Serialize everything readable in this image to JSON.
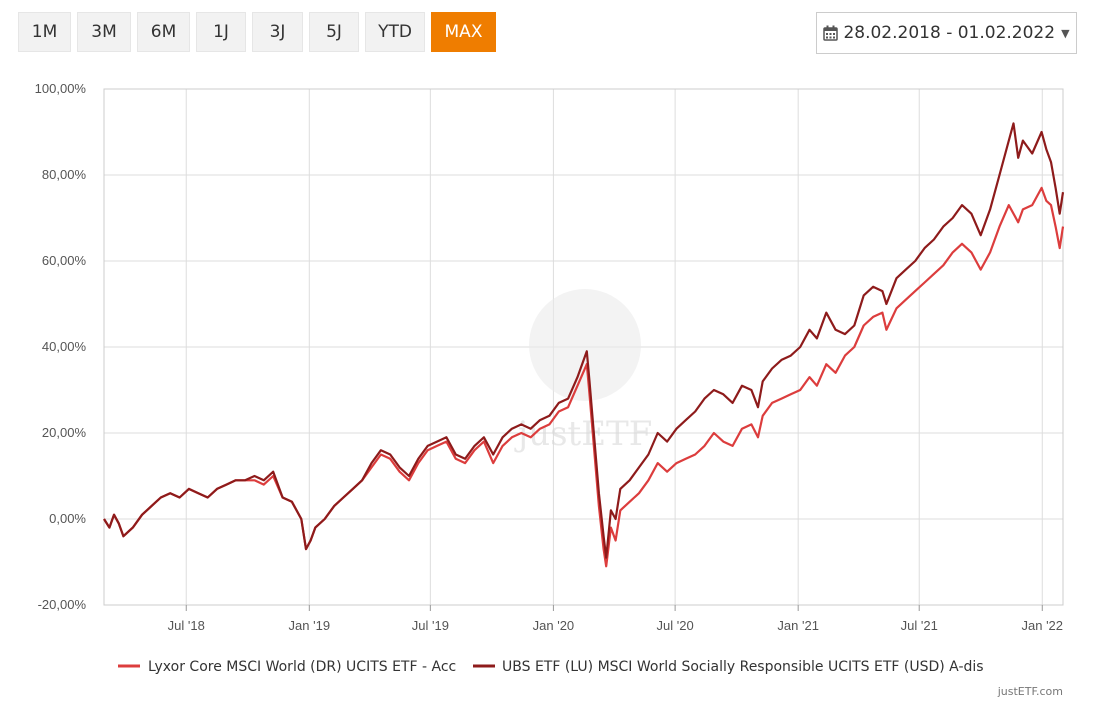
{
  "range_buttons": [
    {
      "label": "1M",
      "active": false
    },
    {
      "label": "3M",
      "active": false
    },
    {
      "label": "6M",
      "active": false
    },
    {
      "label": "1J",
      "active": false
    },
    {
      "label": "3J",
      "active": false
    },
    {
      "label": "5J",
      "active": false
    },
    {
      "label": "YTD",
      "active": false
    },
    {
      "label": "MAX",
      "active": true
    }
  ],
  "date_range": "28.02.2018 - 01.02.2022",
  "credit": "justETF.com",
  "watermark": "justETF",
  "colors": {
    "accent": "#ef7d00",
    "series1": "#dc3d3d",
    "series2": "#8e1b1b",
    "grid": "#dddddd"
  },
  "chart_data": {
    "type": "line",
    "title": "",
    "xlabel": "",
    "ylabel": "",
    "ylim": [
      -20,
      100
    ],
    "x_range": [
      "2018-02-28",
      "2022-02-01"
    ],
    "y_ticks": [
      {
        "value": 100,
        "label": "100,00%"
      },
      {
        "value": 80,
        "label": "80,00%"
      },
      {
        "value": 60,
        "label": "60,00%"
      },
      {
        "value": 40,
        "label": "40,00%"
      },
      {
        "value": 20,
        "label": "20,00%"
      },
      {
        "value": 0,
        "label": "0,00%"
      },
      {
        "value": -20,
        "label": "-20,00%"
      }
    ],
    "x_ticks": [
      {
        "date": "2018-07-01",
        "label": "Jul '18"
      },
      {
        "date": "2019-01-01",
        "label": "Jan '19"
      },
      {
        "date": "2019-07-01",
        "label": "Jul '19"
      },
      {
        "date": "2020-01-01",
        "label": "Jan '20"
      },
      {
        "date": "2020-07-01",
        "label": "Jul '20"
      },
      {
        "date": "2021-01-01",
        "label": "Jan '21"
      },
      {
        "date": "2021-07-01",
        "label": "Jul '21"
      },
      {
        "date": "2022-01-01",
        "label": "Jan '22"
      }
    ],
    "legend_position": "bottom",
    "series": [
      {
        "name": "Lyxor Core MSCI World (DR) UCITS ETF - Acc",
        "color": "#dc3d3d",
        "points": [
          [
            "2018-02-28",
            0
          ],
          [
            "2018-03-08",
            -2
          ],
          [
            "2018-03-15",
            1
          ],
          [
            "2018-03-22",
            -1
          ],
          [
            "2018-03-29",
            -4
          ],
          [
            "2018-04-12",
            -2
          ],
          [
            "2018-04-26",
            1
          ],
          [
            "2018-05-10",
            3
          ],
          [
            "2018-05-24",
            5
          ],
          [
            "2018-06-07",
            6
          ],
          [
            "2018-06-21",
            5
          ],
          [
            "2018-07-05",
            7
          ],
          [
            "2018-07-19",
            6
          ],
          [
            "2018-08-02",
            5
          ],
          [
            "2018-08-16",
            7
          ],
          [
            "2018-08-30",
            8
          ],
          [
            "2018-09-13",
            9
          ],
          [
            "2018-09-27",
            9
          ],
          [
            "2018-10-11",
            9
          ],
          [
            "2018-10-25",
            8
          ],
          [
            "2018-11-08",
            10
          ],
          [
            "2018-11-22",
            5
          ],
          [
            "2018-12-06",
            4
          ],
          [
            "2018-12-20",
            0
          ],
          [
            "2018-12-27",
            -7
          ],
          [
            "2019-01-03",
            -5
          ],
          [
            "2019-01-10",
            -2
          ],
          [
            "2019-01-24",
            0
          ],
          [
            "2019-02-07",
            3
          ],
          [
            "2019-02-21",
            5
          ],
          [
            "2019-03-07",
            7
          ],
          [
            "2019-03-21",
            9
          ],
          [
            "2019-04-04",
            12
          ],
          [
            "2019-04-18",
            15
          ],
          [
            "2019-05-02",
            14
          ],
          [
            "2019-05-16",
            11
          ],
          [
            "2019-05-30",
            9
          ],
          [
            "2019-06-13",
            13
          ],
          [
            "2019-06-27",
            16
          ],
          [
            "2019-07-11",
            17
          ],
          [
            "2019-07-25",
            18
          ],
          [
            "2019-08-08",
            14
          ],
          [
            "2019-08-22",
            13
          ],
          [
            "2019-09-05",
            16
          ],
          [
            "2019-09-19",
            18
          ],
          [
            "2019-10-03",
            13
          ],
          [
            "2019-10-17",
            17
          ],
          [
            "2019-10-31",
            19
          ],
          [
            "2019-11-14",
            20
          ],
          [
            "2019-11-28",
            19
          ],
          [
            "2019-12-12",
            21
          ],
          [
            "2019-12-26",
            22
          ],
          [
            "2020-01-09",
            25
          ],
          [
            "2020-01-23",
            26
          ],
          [
            "2020-02-06",
            31
          ],
          [
            "2020-02-20",
            36
          ],
          [
            "2020-02-24",
            29
          ],
          [
            "2020-03-02",
            16
          ],
          [
            "2020-03-09",
            3
          ],
          [
            "2020-03-16",
            -7
          ],
          [
            "2020-03-20",
            -11
          ],
          [
            "2020-03-27",
            -2
          ],
          [
            "2020-04-03",
            -5
          ],
          [
            "2020-04-10",
            2
          ],
          [
            "2020-04-24",
            4
          ],
          [
            "2020-05-08",
            6
          ],
          [
            "2020-05-22",
            9
          ],
          [
            "2020-06-05",
            13
          ],
          [
            "2020-06-19",
            11
          ],
          [
            "2020-07-03",
            13
          ],
          [
            "2020-07-17",
            14
          ],
          [
            "2020-07-31",
            15
          ],
          [
            "2020-08-14",
            17
          ],
          [
            "2020-08-28",
            20
          ],
          [
            "2020-09-11",
            18
          ],
          [
            "2020-09-25",
            17
          ],
          [
            "2020-10-09",
            21
          ],
          [
            "2020-10-23",
            22
          ],
          [
            "2020-11-02",
            19
          ],
          [
            "2020-11-09",
            24
          ],
          [
            "2020-11-23",
            27
          ],
          [
            "2020-12-07",
            28
          ],
          [
            "2020-12-21",
            29
          ],
          [
            "2021-01-04",
            30
          ],
          [
            "2021-01-18",
            33
          ],
          [
            "2021-01-29",
            31
          ],
          [
            "2021-02-12",
            36
          ],
          [
            "2021-02-26",
            34
          ],
          [
            "2021-03-12",
            38
          ],
          [
            "2021-03-26",
            40
          ],
          [
            "2021-04-09",
            45
          ],
          [
            "2021-04-23",
            47
          ],
          [
            "2021-05-07",
            48
          ],
          [
            "2021-05-13",
            44
          ],
          [
            "2021-05-28",
            49
          ],
          [
            "2021-06-11",
            51
          ],
          [
            "2021-06-25",
            53
          ],
          [
            "2021-07-09",
            55
          ],
          [
            "2021-07-23",
            57
          ],
          [
            "2021-08-06",
            59
          ],
          [
            "2021-08-20",
            62
          ],
          [
            "2021-09-03",
            64
          ],
          [
            "2021-09-17",
            62
          ],
          [
            "2021-10-01",
            58
          ],
          [
            "2021-10-15",
            62
          ],
          [
            "2021-10-29",
            68
          ],
          [
            "2021-11-12",
            73
          ],
          [
            "2021-11-26",
            69
          ],
          [
            "2021-12-03",
            72
          ],
          [
            "2021-12-17",
            73
          ],
          [
            "2021-12-31",
            77
          ],
          [
            "2022-01-07",
            74
          ],
          [
            "2022-01-14",
            73
          ],
          [
            "2022-01-21",
            68
          ],
          [
            "2022-01-27",
            63
          ],
          [
            "2022-02-01",
            68
          ]
        ]
      },
      {
        "name": "UBS ETF (LU) MSCI World Socially Responsible UCITS ETF (USD) A-dis",
        "color": "#8e1b1b",
        "points": [
          [
            "2018-02-28",
            0
          ],
          [
            "2018-03-08",
            -2
          ],
          [
            "2018-03-15",
            1
          ],
          [
            "2018-03-22",
            -1
          ],
          [
            "2018-03-29",
            -4
          ],
          [
            "2018-04-12",
            -2
          ],
          [
            "2018-04-26",
            1
          ],
          [
            "2018-05-10",
            3
          ],
          [
            "2018-05-24",
            5
          ],
          [
            "2018-06-07",
            6
          ],
          [
            "2018-06-21",
            5
          ],
          [
            "2018-07-05",
            7
          ],
          [
            "2018-07-19",
            6
          ],
          [
            "2018-08-02",
            5
          ],
          [
            "2018-08-16",
            7
          ],
          [
            "2018-08-30",
            8
          ],
          [
            "2018-09-13",
            9
          ],
          [
            "2018-09-27",
            9
          ],
          [
            "2018-10-11",
            10
          ],
          [
            "2018-10-25",
            9
          ],
          [
            "2018-11-08",
            11
          ],
          [
            "2018-11-22",
            5
          ],
          [
            "2018-12-06",
            4
          ],
          [
            "2018-12-20",
            0
          ],
          [
            "2018-12-27",
            -7
          ],
          [
            "2019-01-03",
            -5
          ],
          [
            "2019-01-10",
            -2
          ],
          [
            "2019-01-24",
            0
          ],
          [
            "2019-02-07",
            3
          ],
          [
            "2019-02-21",
            5
          ],
          [
            "2019-03-07",
            7
          ],
          [
            "2019-03-21",
            9
          ],
          [
            "2019-04-04",
            13
          ],
          [
            "2019-04-18",
            16
          ],
          [
            "2019-05-02",
            15
          ],
          [
            "2019-05-16",
            12
          ],
          [
            "2019-05-30",
            10
          ],
          [
            "2019-06-13",
            14
          ],
          [
            "2019-06-27",
            17
          ],
          [
            "2019-07-11",
            18
          ],
          [
            "2019-07-25",
            19
          ],
          [
            "2019-08-08",
            15
          ],
          [
            "2019-08-22",
            14
          ],
          [
            "2019-09-05",
            17
          ],
          [
            "2019-09-19",
            19
          ],
          [
            "2019-10-03",
            15
          ],
          [
            "2019-10-17",
            19
          ],
          [
            "2019-10-31",
            21
          ],
          [
            "2019-11-14",
            22
          ],
          [
            "2019-11-28",
            21
          ],
          [
            "2019-12-12",
            23
          ],
          [
            "2019-12-26",
            24
          ],
          [
            "2020-01-09",
            27
          ],
          [
            "2020-01-23",
            28
          ],
          [
            "2020-02-06",
            33
          ],
          [
            "2020-02-20",
            39
          ],
          [
            "2020-02-24",
            32
          ],
          [
            "2020-03-02",
            19
          ],
          [
            "2020-03-09",
            6
          ],
          [
            "2020-03-16",
            -4
          ],
          [
            "2020-03-20",
            -9
          ],
          [
            "2020-03-27",
            2
          ],
          [
            "2020-04-03",
            0
          ],
          [
            "2020-04-10",
            7
          ],
          [
            "2020-04-24",
            9
          ],
          [
            "2020-05-08",
            12
          ],
          [
            "2020-05-22",
            15
          ],
          [
            "2020-06-05",
            20
          ],
          [
            "2020-06-19",
            18
          ],
          [
            "2020-07-03",
            21
          ],
          [
            "2020-07-17",
            23
          ],
          [
            "2020-07-31",
            25
          ],
          [
            "2020-08-14",
            28
          ],
          [
            "2020-08-28",
            30
          ],
          [
            "2020-09-11",
            29
          ],
          [
            "2020-09-25",
            27
          ],
          [
            "2020-10-09",
            31
          ],
          [
            "2020-10-23",
            30
          ],
          [
            "2020-11-02",
            26
          ],
          [
            "2020-11-09",
            32
          ],
          [
            "2020-11-23",
            35
          ],
          [
            "2020-12-07",
            37
          ],
          [
            "2020-12-21",
            38
          ],
          [
            "2021-01-04",
            40
          ],
          [
            "2021-01-18",
            44
          ],
          [
            "2021-01-29",
            42
          ],
          [
            "2021-02-12",
            48
          ],
          [
            "2021-02-26",
            44
          ],
          [
            "2021-03-12",
            43
          ],
          [
            "2021-03-26",
            45
          ],
          [
            "2021-04-09",
            52
          ],
          [
            "2021-04-23",
            54
          ],
          [
            "2021-05-07",
            53
          ],
          [
            "2021-05-13",
            50
          ],
          [
            "2021-05-28",
            56
          ],
          [
            "2021-06-11",
            58
          ],
          [
            "2021-06-25",
            60
          ],
          [
            "2021-07-09",
            63
          ],
          [
            "2021-07-23",
            65
          ],
          [
            "2021-08-06",
            68
          ],
          [
            "2021-08-20",
            70
          ],
          [
            "2021-09-03",
            73
          ],
          [
            "2021-09-17",
            71
          ],
          [
            "2021-10-01",
            66
          ],
          [
            "2021-10-15",
            72
          ],
          [
            "2021-10-29",
            80
          ],
          [
            "2021-11-12",
            88
          ],
          [
            "2021-11-19",
            92
          ],
          [
            "2021-11-26",
            84
          ],
          [
            "2021-12-03",
            88
          ],
          [
            "2021-12-17",
            85
          ],
          [
            "2021-12-31",
            90
          ],
          [
            "2022-01-07",
            86
          ],
          [
            "2022-01-14",
            83
          ],
          [
            "2022-01-21",
            77
          ],
          [
            "2022-01-27",
            71
          ],
          [
            "2022-02-01",
            76
          ]
        ]
      }
    ]
  }
}
